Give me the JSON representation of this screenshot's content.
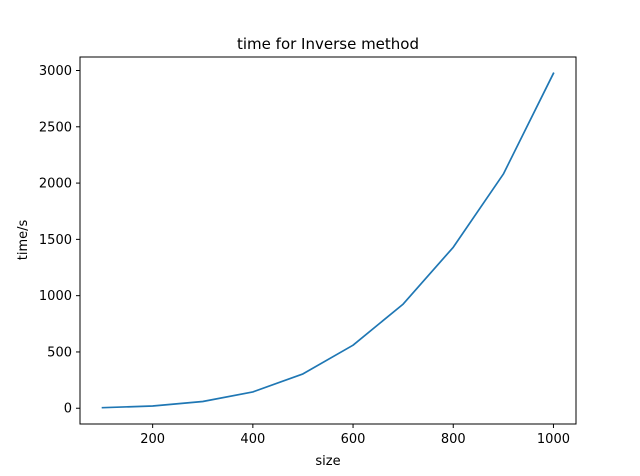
{
  "chart_data": {
    "type": "line",
    "title": "time for Inverse method",
    "xlabel": "size",
    "ylabel": "time/s",
    "x": [
      100,
      200,
      300,
      400,
      500,
      600,
      700,
      800,
      900,
      1000
    ],
    "series": [
      {
        "values": [
          5,
          20,
          60,
          145,
          305,
          560,
          925,
          1430,
          2080,
          2975
        ],
        "color": "#1f77b4"
      }
    ],
    "xlim": [
      55,
      1045
    ],
    "ylim": [
      -140,
      3120
    ],
    "xticks": [
      200,
      400,
      600,
      800,
      1000
    ],
    "yticks": [
      0,
      500,
      1000,
      1500,
      2000,
      2500,
      3000
    ],
    "grid": false,
    "legend": "none"
  }
}
